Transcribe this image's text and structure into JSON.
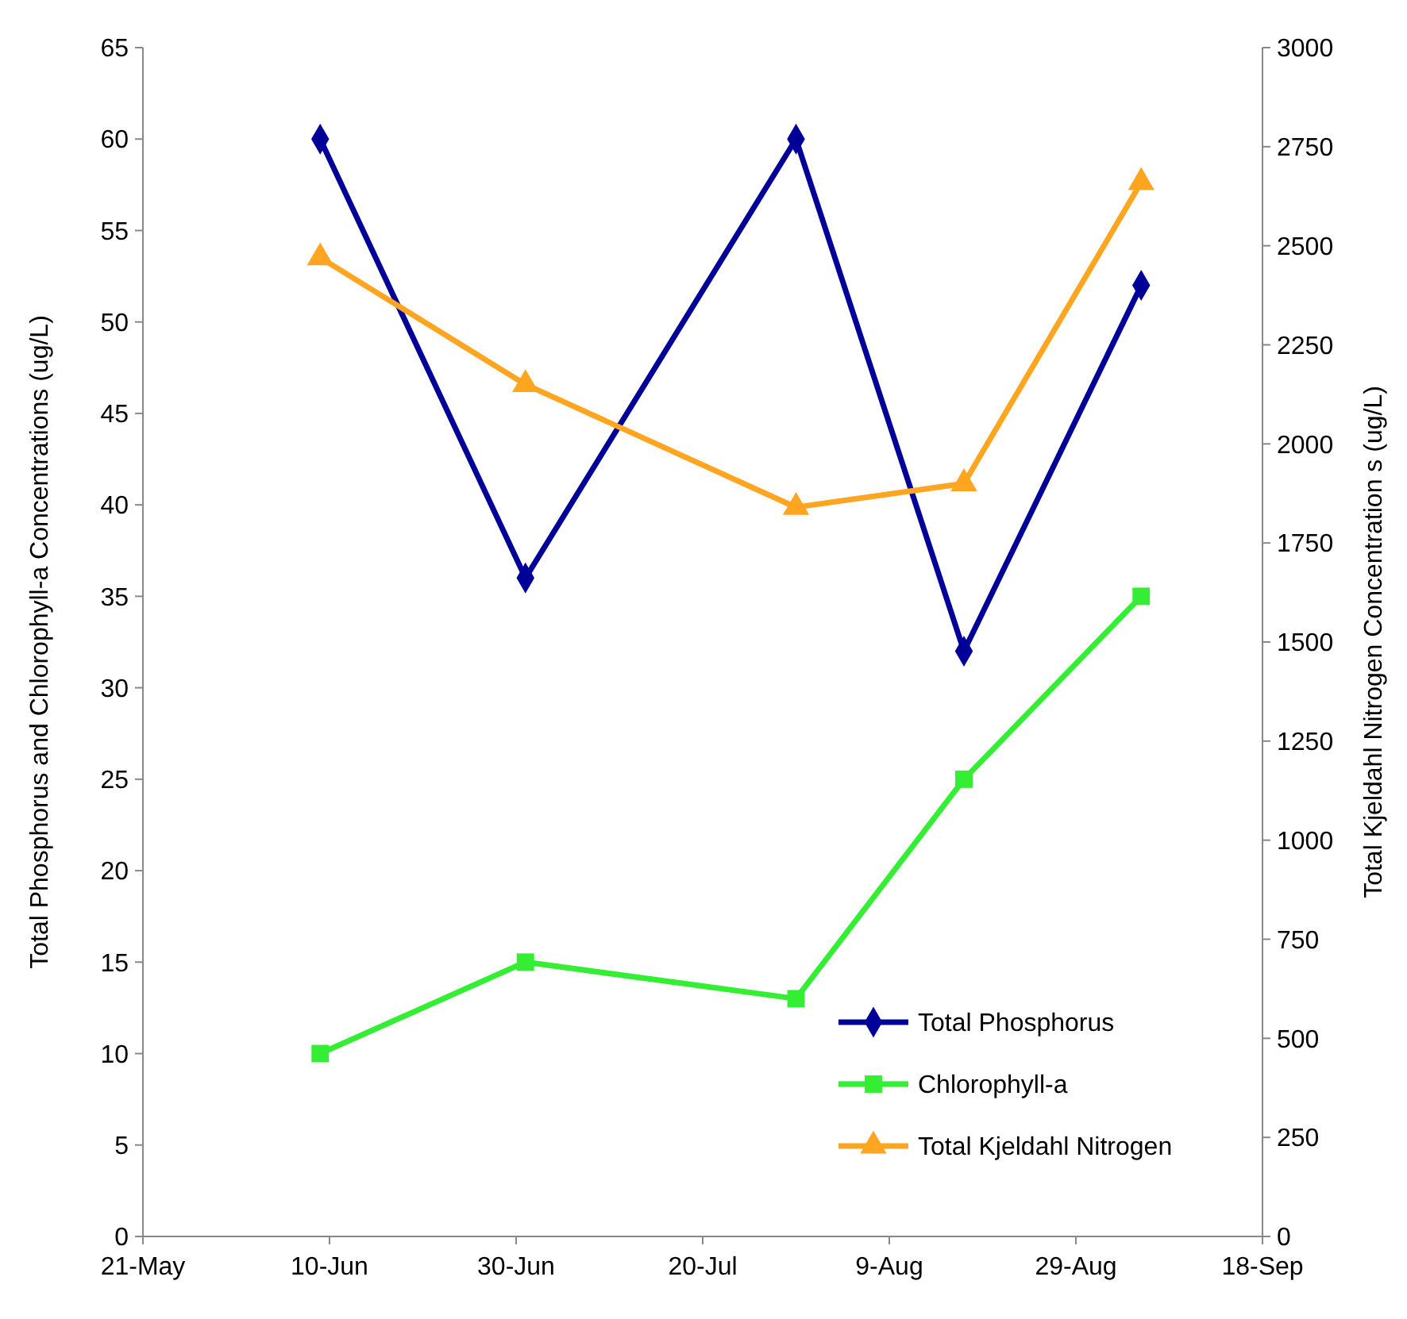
{
  "chart_data": {
    "type": "line",
    "ylabel": "Total Phosphorus and Chlorophyll-a Concentrations (ug/L)",
    "y2label": "Total Kjeldahl Nitrogen Concentration s (ug/L)",
    "xlim": [
      "--05-21",
      "--09-18"
    ],
    "xticks": [
      {
        "value": "--05-21",
        "label": "21-May"
      },
      {
        "value": "--06-10",
        "label": "10-Jun"
      },
      {
        "value": "--06-30",
        "label": "30-Jun"
      },
      {
        "value": "--07-20",
        "label": "20-Jul"
      },
      {
        "value": "--08-09",
        "label": "9-Aug"
      },
      {
        "value": "--08-29",
        "label": "29-Aug"
      },
      {
        "value": "--09-18",
        "label": "18-Sep"
      }
    ],
    "ylim": [
      0,
      65
    ],
    "yticks": [
      0,
      5,
      10,
      15,
      20,
      25,
      30,
      35,
      40,
      45,
      50,
      55,
      60,
      65
    ],
    "y2lim": [
      0,
      3000
    ],
    "y2ticks": [
      0,
      250,
      500,
      750,
      1000,
      1250,
      1500,
      1750,
      2000,
      2250,
      2500,
      2750,
      3000
    ],
    "x": [
      "--06-09",
      "--07-01",
      "--07-30",
      "--08-17",
      "--09-05"
    ],
    "grid": false,
    "legend": "bottom right",
    "line_style": "solid",
    "series": [
      {
        "name": "Total Phosphorus",
        "color": "#000099",
        "marker": "diamond",
        "values": [
          60,
          36,
          60,
          32,
          52
        ]
      },
      {
        "name": "Chlorophyll-a",
        "color": "#33ee33",
        "marker": "square",
        "values": [
          10,
          15,
          13,
          25,
          35
        ]
      },
      {
        "name": "Total Kjeldahl Nitrogen",
        "color": "#ffa520",
        "marker": "triangle",
        "axis": "y2",
        "values": [
          2470,
          2150,
          1840,
          1900,
          2660
        ]
      }
    ]
  }
}
